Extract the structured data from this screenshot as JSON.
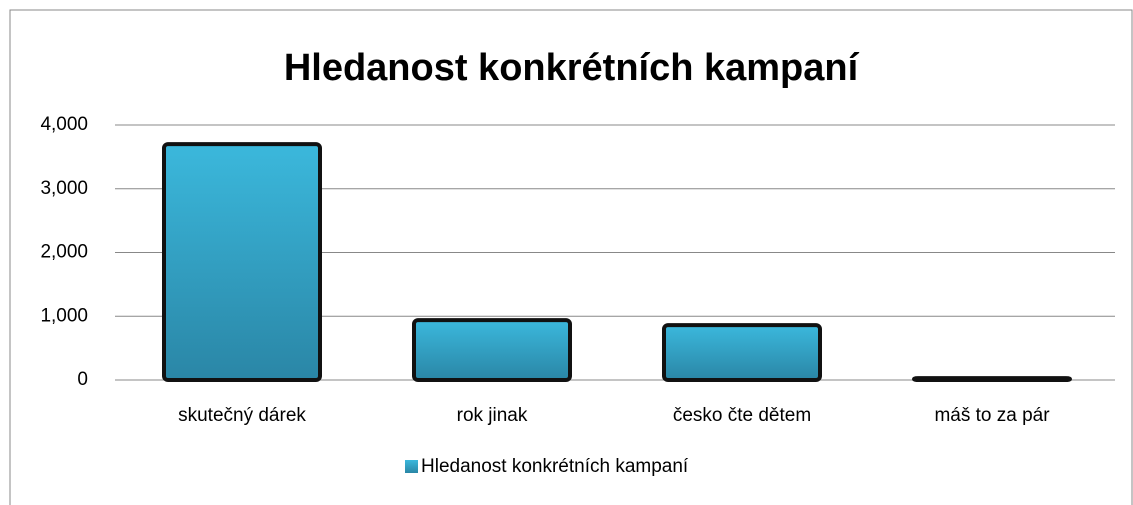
{
  "chart_data": {
    "type": "bar",
    "title": "Hledanost konkrétních kampaní",
    "categories": [
      "skutečný dárek",
      "rok jinak",
      "česko čte dětem",
      "máš to za pár"
    ],
    "series": [
      {
        "name": "Hledanost konkrétních kampaní",
        "color": "#36acd0",
        "values": [
          3700,
          940,
          860,
          30
        ]
      }
    ],
    "ylim": [
      0,
      4000
    ],
    "yticks": [
      0,
      {
        "value": 1000,
        "label": "1,000"
      },
      {
        "value": 2000,
        "label": "2,000"
      },
      {
        "value": 3000,
        "label": "3,000"
      },
      {
        "value": 4000,
        "label": "4,000"
      }
    ],
    "grid": true,
    "legend": "bottom"
  }
}
